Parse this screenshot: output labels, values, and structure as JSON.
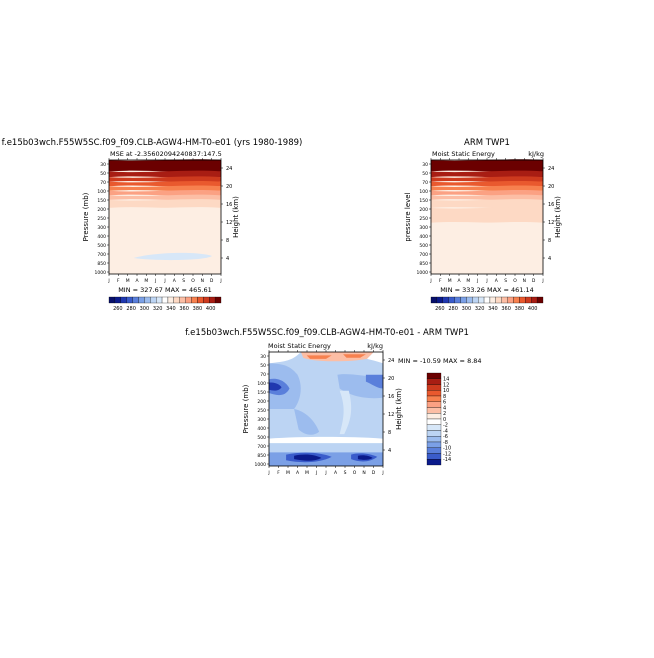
{
  "chart_data": [
    {
      "type": "heatmap",
      "title": "f.e15b03wch.F55W5SC.f09_f09.CLB-AGW4-HM-T0-e01 (yrs 1980-1989)",
      "subtitle_left": "MSE at -2.35602094240837:147.5",
      "subtitle_right": "",
      "ylabel": "Pressure (mb)",
      "ylabel_right": "Height (km)",
      "x_ticks": [
        "J",
        "F",
        "M",
        "A",
        "M",
        "J",
        "J",
        "A",
        "S",
        "O",
        "N",
        "D",
        "J"
      ],
      "y_ticks": [
        "30",
        "50",
        "70",
        "100",
        "150",
        "200",
        "250",
        "300",
        "400",
        "500",
        "700",
        "850",
        "1000"
      ],
      "y_ticks_right": [
        "24",
        "20",
        "16",
        "12",
        "8",
        "4"
      ],
      "stats": "MIN = 327.67   MAX = 465.61",
      "colorbar_labels": [
        "260",
        "280",
        "300",
        "320",
        "340",
        "360",
        "380",
        "400"
      ],
      "colorbar_orientation": "horizontal",
      "band_levels": [
        420,
        400,
        390,
        380,
        370,
        360,
        350,
        340,
        330,
        320
      ],
      "anomaly": {
        "label": "near 700 mb",
        "level": 320
      }
    },
    {
      "type": "heatmap",
      "title": "ARM TWP1",
      "subtitle_left": "Moist Static Energy",
      "subtitle_right": "kJ/kg",
      "ylabel": "pressure level",
      "ylabel_right": "Height (km)",
      "x_ticks": [
        "J",
        "F",
        "M",
        "A",
        "M",
        "J",
        "J",
        "A",
        "S",
        "O",
        "N",
        "D",
        "J"
      ],
      "y_ticks": [
        "30",
        "50",
        "70",
        "100",
        "150",
        "200",
        "250",
        "300",
        "400",
        "500",
        "700",
        "850",
        "1000"
      ],
      "y_ticks_right": [
        "24",
        "20",
        "16",
        "12",
        "8",
        "4"
      ],
      "stats": "MIN = 333.26   MAX = 461.14",
      "colorbar_labels": [
        "260",
        "280",
        "300",
        "320",
        "340",
        "360",
        "380",
        "400"
      ],
      "colorbar_orientation": "horizontal",
      "band_levels": [
        420,
        400,
        390,
        380,
        370,
        360,
        350,
        340,
        335,
        330
      ]
    },
    {
      "type": "heatmap",
      "title": "f.e15b03wch.F55W5SC.f09_f09.CLB-AGW4-HM-T0-e01 - ARM TWP1",
      "subtitle_left": "Moist Static Energy",
      "subtitle_right": "kJ/kg",
      "ylabel": "Pressure (mb)",
      "ylabel_right": "Height (km)",
      "x_ticks": [
        "J",
        "F",
        "M",
        "A",
        "M",
        "J",
        "J",
        "A",
        "S",
        "O",
        "N",
        "D",
        "J"
      ],
      "y_ticks": [
        "30",
        "50",
        "70",
        "100",
        "150",
        "200",
        "250",
        "300",
        "400",
        "500",
        "700",
        "850",
        "1000"
      ],
      "y_ticks_right": [
        "24",
        "20",
        "16",
        "12",
        "8",
        "4"
      ],
      "stats": "MIN = -10.59   MAX =   8.84",
      "colorbar_labels": [
        "14",
        "12",
        "10",
        "8",
        "6",
        "4",
        "2",
        "0",
        "-2",
        "-4",
        "-6",
        "-8",
        "-10",
        "-12",
        "-14"
      ],
      "colorbar_orientation": "vertical",
      "range": [
        -10.59,
        8.84
      ]
    }
  ],
  "colors": {
    "warm": [
      "#fdeee3",
      "#fdd9c4",
      "#fcbea5",
      "#fba183",
      "#f7814f",
      "#e9592e",
      "#cd3a1e",
      "#a81d13",
      "#8b0000",
      "#6b0000"
    ],
    "cool": [
      "#d7e7f8",
      "#bcd4f3",
      "#9cbcee",
      "#7ba0e6",
      "#5a7fdb",
      "#3a5ccb",
      "#2038b0",
      "#0b1b8c",
      "#08106b"
    ],
    "diff_neutral": "#ffffff",
    "frame": "#000000"
  }
}
